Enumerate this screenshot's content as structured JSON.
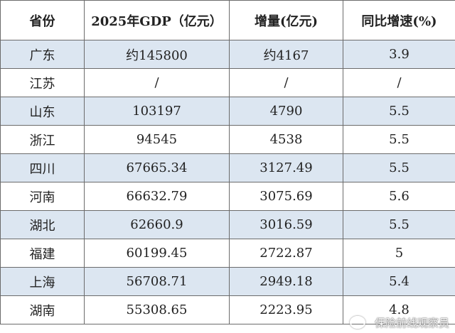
{
  "table": {
    "header": [
      "省份",
      "2025年GDP（亿元）",
      "增量(亿元)",
      "同比增速(%)"
    ],
    "rows": [
      [
        "广东",
        "约145800",
        "约4167",
        "3.9"
      ],
      [
        "江苏",
        "/",
        "/",
        "/"
      ],
      [
        "山东",
        "103197",
        "4790",
        "5.5"
      ],
      [
        "浙江",
        "94545",
        "4538",
        "5.5"
      ],
      [
        "四川",
        "67665.34",
        "3127.49",
        "5.5"
      ],
      [
        "河南",
        "66632.79",
        "3075.69",
        "5.6"
      ],
      [
        "湖北",
        "62660.9",
        "3016.59",
        "5.5"
      ],
      [
        "福建",
        "60199.45",
        "2722.87",
        "5"
      ],
      [
        "上海",
        "56708.71",
        "2949.18",
        "5.4"
      ],
      [
        "湖南",
        "55308.65",
        "2223.95",
        "4.8"
      ]
    ]
  },
  "watermark": "保险前线观察员"
}
